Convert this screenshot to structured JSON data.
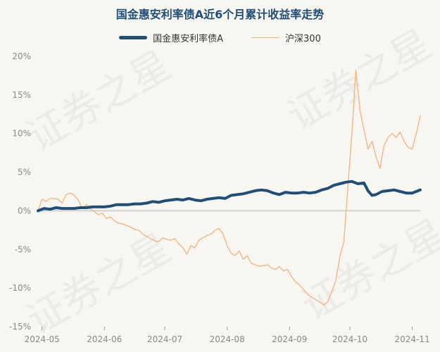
{
  "chart_data": {
    "type": "line",
    "title": "国金惠安利率债A近6个月累计收益率走势",
    "yticks": [
      "20%",
      "15%",
      "10%",
      "5%",
      "0%",
      "-5%",
      "-10%",
      "-15%"
    ],
    "ylim": [
      -15,
      20
    ],
    "x_date_range": [
      "2024-04-29",
      "2024-11-05"
    ],
    "xticks": [
      {
        "date": "2024-05-01",
        "label": "2024-05"
      },
      {
        "date": "2024-06-01",
        "label": "2024-06"
      },
      {
        "date": "2024-07-01",
        "label": "2024-07"
      },
      {
        "date": "2024-08-01",
        "label": "2024-08"
      },
      {
        "date": "2024-09-01",
        "label": "2024-09"
      },
      {
        "date": "2024-10-01",
        "label": "2024-10"
      },
      {
        "date": "2024-11-01",
        "label": "2024-11"
      }
    ],
    "grid": false,
    "legend_position": "top-center",
    "series": [
      {
        "name": "国金惠安利率债A",
        "color": "#1f4e79",
        "points": [
          [
            "2024-04-29",
            0.0
          ],
          [
            "2024-05-02",
            0.3
          ],
          [
            "2024-05-05",
            0.2
          ],
          [
            "2024-05-08",
            0.4
          ],
          [
            "2024-05-11",
            0.3
          ],
          [
            "2024-05-14",
            0.3
          ],
          [
            "2024-05-17",
            0.3
          ],
          [
            "2024-05-20",
            0.4
          ],
          [
            "2024-05-23",
            0.4
          ],
          [
            "2024-05-26",
            0.5
          ],
          [
            "2024-05-29",
            0.5
          ],
          [
            "2024-06-01",
            0.5
          ],
          [
            "2024-06-04",
            0.6
          ],
          [
            "2024-06-07",
            0.8
          ],
          [
            "2024-06-10",
            0.8
          ],
          [
            "2024-06-13",
            0.8
          ],
          [
            "2024-06-16",
            0.9
          ],
          [
            "2024-06-19",
            0.9
          ],
          [
            "2024-06-22",
            1.0
          ],
          [
            "2024-06-25",
            1.2
          ],
          [
            "2024-06-28",
            1.1
          ],
          [
            "2024-07-01",
            1.3
          ],
          [
            "2024-07-04",
            1.4
          ],
          [
            "2024-07-07",
            1.5
          ],
          [
            "2024-07-10",
            1.4
          ],
          [
            "2024-07-13",
            1.6
          ],
          [
            "2024-07-16",
            1.4
          ],
          [
            "2024-07-19",
            1.3
          ],
          [
            "2024-07-22",
            1.5
          ],
          [
            "2024-07-25",
            1.6
          ],
          [
            "2024-07-28",
            1.7
          ],
          [
            "2024-07-31",
            1.6
          ],
          [
            "2024-08-03",
            2.0
          ],
          [
            "2024-08-06",
            2.1
          ],
          [
            "2024-08-09",
            2.2
          ],
          [
            "2024-08-12",
            2.4
          ],
          [
            "2024-08-15",
            2.6
          ],
          [
            "2024-08-18",
            2.7
          ],
          [
            "2024-08-21",
            2.6
          ],
          [
            "2024-08-24",
            2.3
          ],
          [
            "2024-08-27",
            2.1
          ],
          [
            "2024-08-30",
            2.4
          ],
          [
            "2024-09-02",
            2.3
          ],
          [
            "2024-09-05",
            2.3
          ],
          [
            "2024-09-08",
            2.4
          ],
          [
            "2024-09-11",
            2.3
          ],
          [
            "2024-09-14",
            2.4
          ],
          [
            "2024-09-17",
            2.7
          ],
          [
            "2024-09-20",
            2.9
          ],
          [
            "2024-09-23",
            3.3
          ],
          [
            "2024-09-26",
            3.5
          ],
          [
            "2024-09-29",
            3.7
          ],
          [
            "2024-10-02",
            3.8
          ],
          [
            "2024-10-05",
            3.5
          ],
          [
            "2024-10-08",
            3.6
          ],
          [
            "2024-10-10",
            2.6
          ],
          [
            "2024-10-12",
            2.0
          ],
          [
            "2024-10-14",
            2.1
          ],
          [
            "2024-10-17",
            2.5
          ],
          [
            "2024-10-20",
            2.6
          ],
          [
            "2024-10-23",
            2.7
          ],
          [
            "2024-10-26",
            2.5
          ],
          [
            "2024-10-29",
            2.3
          ],
          [
            "2024-11-01",
            2.3
          ],
          [
            "2024-11-04",
            2.6
          ],
          [
            "2024-11-05",
            2.7
          ]
        ]
      },
      {
        "name": "沪深300",
        "color": "#f2b27e",
        "points": [
          [
            "2024-04-29",
            0.0
          ],
          [
            "2024-05-01",
            1.5
          ],
          [
            "2024-05-03",
            1.2
          ],
          [
            "2024-05-05",
            1.6
          ],
          [
            "2024-05-07",
            1.6
          ],
          [
            "2024-05-09",
            1.5
          ],
          [
            "2024-05-11",
            1.0
          ],
          [
            "2024-05-13",
            2.1
          ],
          [
            "2024-05-15",
            2.3
          ],
          [
            "2024-05-17",
            2.0
          ],
          [
            "2024-05-19",
            1.4
          ],
          [
            "2024-05-21",
            0.3
          ],
          [
            "2024-05-23",
            0.8
          ],
          [
            "2024-05-25",
            0.3
          ],
          [
            "2024-05-27",
            -0.1
          ],
          [
            "2024-05-29",
            -0.5
          ],
          [
            "2024-05-31",
            -0.3
          ],
          [
            "2024-06-02",
            -1.0
          ],
          [
            "2024-06-04",
            -0.8
          ],
          [
            "2024-06-06",
            -1.3
          ],
          [
            "2024-06-08",
            -1.6
          ],
          [
            "2024-06-10",
            -1.7
          ],
          [
            "2024-06-12",
            -1.9
          ],
          [
            "2024-06-14",
            -2.1
          ],
          [
            "2024-06-16",
            -2.4
          ],
          [
            "2024-06-18",
            -2.5
          ],
          [
            "2024-06-20",
            -3.0
          ],
          [
            "2024-06-22",
            -3.3
          ],
          [
            "2024-06-24",
            -3.6
          ],
          [
            "2024-06-26",
            -3.9
          ],
          [
            "2024-06-28",
            -4.0
          ],
          [
            "2024-06-30",
            -3.5
          ],
          [
            "2024-07-02",
            -3.7
          ],
          [
            "2024-07-04",
            -3.8
          ],
          [
            "2024-07-06",
            -3.6
          ],
          [
            "2024-07-08",
            -4.3
          ],
          [
            "2024-07-10",
            -4.8
          ],
          [
            "2024-07-12",
            -5.6
          ],
          [
            "2024-07-14",
            -4.5
          ],
          [
            "2024-07-16",
            -4.8
          ],
          [
            "2024-07-18",
            -3.8
          ],
          [
            "2024-07-20",
            -3.5
          ],
          [
            "2024-07-22",
            -3.2
          ],
          [
            "2024-07-24",
            -3.0
          ],
          [
            "2024-07-26",
            -2.5
          ],
          [
            "2024-07-28",
            -2.3
          ],
          [
            "2024-07-30",
            -3.0
          ],
          [
            "2024-08-01",
            -4.5
          ],
          [
            "2024-08-03",
            -5.5
          ],
          [
            "2024-08-05",
            -5.8
          ],
          [
            "2024-08-07",
            -5.2
          ],
          [
            "2024-08-09",
            -6.3
          ],
          [
            "2024-08-11",
            -5.8
          ],
          [
            "2024-08-13",
            -6.8
          ],
          [
            "2024-08-15",
            -7.0
          ],
          [
            "2024-08-17",
            -7.2
          ],
          [
            "2024-08-19",
            -7.1
          ],
          [
            "2024-08-21",
            -7.0
          ],
          [
            "2024-08-23",
            -7.4
          ],
          [
            "2024-08-25",
            -7.6
          ],
          [
            "2024-08-27",
            -7.2
          ],
          [
            "2024-08-29",
            -7.8
          ],
          [
            "2024-08-31",
            -7.6
          ],
          [
            "2024-09-02",
            -8.5
          ],
          [
            "2024-09-04",
            -9.2
          ],
          [
            "2024-09-06",
            -9.6
          ],
          [
            "2024-09-08",
            -10.2
          ],
          [
            "2024-09-10",
            -10.8
          ],
          [
            "2024-09-12",
            -11.2
          ],
          [
            "2024-09-14",
            -11.5
          ],
          [
            "2024-09-16",
            -11.8
          ],
          [
            "2024-09-18",
            -12.2
          ],
          [
            "2024-09-20",
            -11.8
          ],
          [
            "2024-09-22",
            -10.5
          ],
          [
            "2024-09-24",
            -9.0
          ],
          [
            "2024-09-26",
            -6.0
          ],
          [
            "2024-09-28",
            -4.0
          ],
          [
            "2024-09-30",
            3.0
          ],
          [
            "2024-10-02",
            10.0
          ],
          [
            "2024-10-04",
            18.2
          ],
          [
            "2024-10-06",
            13.0
          ],
          [
            "2024-10-08",
            10.5
          ],
          [
            "2024-10-10",
            8.0
          ],
          [
            "2024-10-12",
            9.0
          ],
          [
            "2024-10-14",
            7.0
          ],
          [
            "2024-10-16",
            5.5
          ],
          [
            "2024-10-18",
            8.5
          ],
          [
            "2024-10-20",
            9.5
          ],
          [
            "2024-10-22",
            10.0
          ],
          [
            "2024-10-24",
            9.5
          ],
          [
            "2024-10-26",
            10.2
          ],
          [
            "2024-10-28",
            9.0
          ],
          [
            "2024-10-30",
            8.2
          ],
          [
            "2024-11-01",
            8.0
          ],
          [
            "2024-11-03",
            10.0
          ],
          [
            "2024-11-05",
            12.3
          ]
        ]
      }
    ],
    "watermark": "证券之星"
  }
}
